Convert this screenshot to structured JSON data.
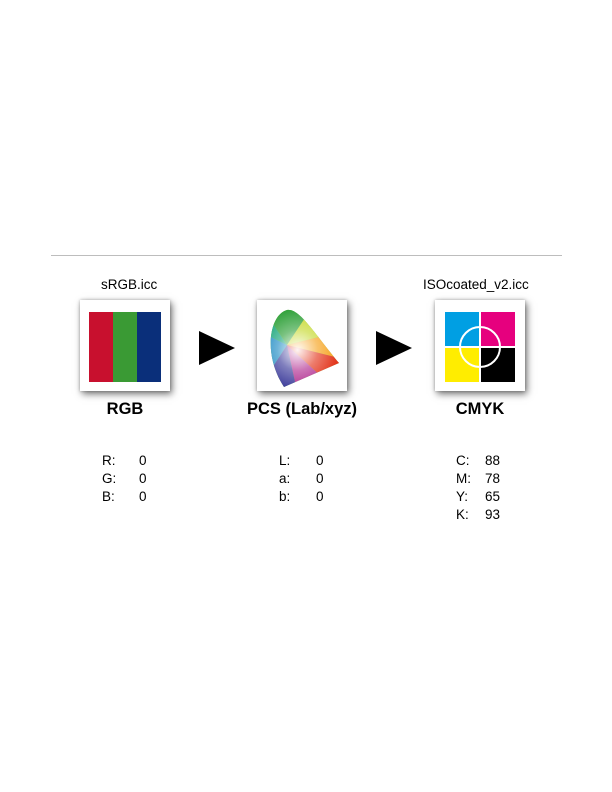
{
  "rgb": {
    "profile": "sRGB.icc",
    "title": "RGB",
    "values": [
      {
        "label": "R:",
        "value": "0"
      },
      {
        "label": "G:",
        "value": "0"
      },
      {
        "label": "B:",
        "value": "0"
      }
    ],
    "colors": {
      "red": "#c8102e",
      "green": "#3a9a34",
      "blue": "#0a2f7a"
    }
  },
  "pcs": {
    "title": "PCS (Lab/xyz)",
    "values": [
      {
        "label": "L:",
        "value": "0"
      },
      {
        "label": "a:",
        "value": "0"
      },
      {
        "label": "b:",
        "value": "0"
      }
    ],
    "icon": "chromaticity-diagram-icon"
  },
  "cmyk": {
    "profile": "ISOcoated_v2.icc",
    "title": "CMYK",
    "values": [
      {
        "label": "C:",
        "value": "88"
      },
      {
        "label": "M:",
        "value": "78"
      },
      {
        "label": "Y:",
        "value": "65"
      },
      {
        "label": "K:",
        "value": "93"
      }
    ],
    "colors": {
      "cyan": "#009fe3",
      "magenta": "#e6007e",
      "yellow": "#ffed00",
      "black": "#000000"
    }
  },
  "arrows": {
    "icon": "right-triangle-arrow-icon"
  }
}
